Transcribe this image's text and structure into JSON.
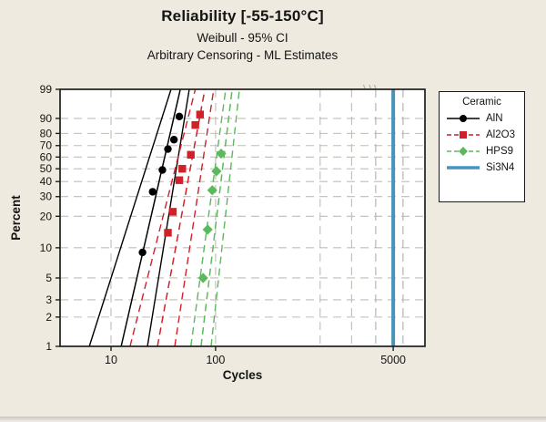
{
  "header": {
    "title": "Reliability [-55-150°C]",
    "subtitle": "Weibull - 95% CI",
    "subtitle2": "Arbitrary Censoring - ML Estimates"
  },
  "colors": {
    "background": "#EFEADF",
    "plot_background": "#FFFFFF",
    "frame": "#1f1f1f",
    "gridline": "#c0bdb5",
    "aln_black": "#000000",
    "al2o3_red": "#D02028",
    "hps9_green": "#5CB85C",
    "si3n4_blue": "#4793BE"
  },
  "chart_data": {
    "type": "scatter",
    "title": "Reliability [-55-150°C]",
    "subtitle": "Weibull - 95% CI",
    "note": "Arbitrary Censoring - ML Estimates",
    "xlabel": "Cycles",
    "ylabel": "Percent",
    "x_scale": "log10",
    "y_scale": "weibull-probability",
    "x_ticks": [
      10,
      100,
      5000
    ],
    "x_gridlines": [
      10,
      100,
      1000,
      2000
    ],
    "x_range_cycles": [
      3.3,
      10000
    ],
    "y_ticks": [
      99,
      90,
      80,
      70,
      60,
      50,
      40,
      30,
      20,
      10,
      5,
      3,
      2,
      1
    ],
    "y_range_percent": [
      1,
      99
    ],
    "grid": true,
    "legend": {
      "title": "Ceramic",
      "position": "right"
    },
    "top_edge_marks_cycles": [
      2600,
      2950,
      3300
    ],
    "series": [
      {
        "name": "AlN",
        "color": "#000000",
        "marker": "circle",
        "line": "solid",
        "points": [
          {
            "cycles": 45,
            "percent": 91
          },
          {
            "cycles": 40,
            "percent": 75
          },
          {
            "cycles": 35,
            "percent": 67
          },
          {
            "cycles": 31,
            "percent": 49
          },
          {
            "cycles": 25,
            "percent": 33
          },
          {
            "cycles": 20,
            "percent": 9
          }
        ],
        "fit": {
          "cycles_at_1pct": 12.5,
          "cycles_at_99pct": 46
        },
        "ci_lower": {
          "cycles_at_1pct": 6.2,
          "cycles_at_99pct": 37.5
        },
        "ci_upper": {
          "cycles_at_1pct": 22.3,
          "cycles_at_99pct": 56
        }
      },
      {
        "name": "Al2O3",
        "color": "#D02028",
        "marker": "square",
        "line": "dashed",
        "points": [
          {
            "cycles": 71,
            "percent": 92
          },
          {
            "cycles": 64,
            "percent": 86
          },
          {
            "cycles": 58,
            "percent": 62
          },
          {
            "cycles": 48,
            "percent": 50
          },
          {
            "cycles": 45,
            "percent": 41
          },
          {
            "cycles": 39,
            "percent": 22
          },
          {
            "cycles": 35,
            "percent": 14
          }
        ],
        "fit": {
          "cycles_at_1pct": 27.8,
          "cycles_at_99pct": 79
        },
        "ci_lower": {
          "cycles_at_1pct": 15.2,
          "cycles_at_99pct": 64
        },
        "ci_upper": {
          "cycles_at_1pct": 40.7,
          "cycles_at_99pct": 96
        }
      },
      {
        "name": "HPS9",
        "color": "#5CB85C",
        "marker": "diamond",
        "line": "dashed",
        "points": [
          {
            "cycles": 113,
            "percent": 63
          },
          {
            "cycles": 102,
            "percent": 48
          },
          {
            "cycles": 93,
            "percent": 34
          },
          {
            "cycles": 84,
            "percent": 15
          },
          {
            "cycles": 76,
            "percent": 5
          }
        ],
        "fit": {
          "cycles_at_1pct": 72.6,
          "cycles_at_99pct": 144
        },
        "ci_lower": {
          "cycles_at_1pct": 58,
          "cycles_at_99pct": 125
        },
        "ci_upper": {
          "cycles_at_1pct": 90.6,
          "cycles_at_99pct": 169
        }
      },
      {
        "name": "Si3N4",
        "color": "#4793BE",
        "marker": "none",
        "line": "solid-thick",
        "vertical_at_cycles": 5000,
        "ci_vertical_cycles": [
          3400,
          6200
        ]
      }
    ]
  }
}
